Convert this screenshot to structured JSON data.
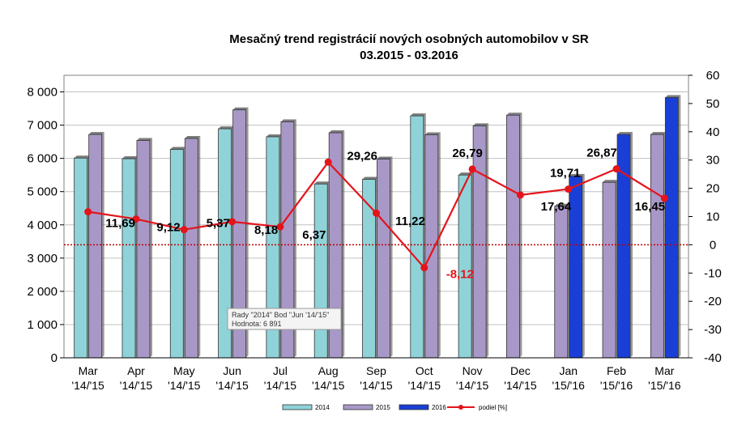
{
  "chart_data": {
    "type": "bar",
    "title": "Mesačný trend registrácií nových osobných automobilov v SR",
    "subtitle": "03.2015 - 03.2016",
    "xlabel": "",
    "ylabel": "",
    "categories": [
      "Mar\n'14/'15",
      "Apr\n'14/'15",
      "May\n'14/'15",
      "Jun\n'14/'15",
      "Jul\n'14/'15",
      "Aug\n'14/'15",
      "Sep\n'14/'15",
      "Oct\n'14/'15",
      "Nov\n'14/'15",
      "Dec\n'14/'15",
      "Jan\n'15/'16",
      "Feb\n'15/'16",
      "Mar\n'15/'16"
    ],
    "ylim": [
      0,
      8500
    ],
    "y2lim": [
      -40,
      60
    ],
    "yticks": [
      "0",
      "1 000",
      "2 000",
      "3 000",
      "4 000",
      "5 000",
      "6 000",
      "7 000",
      "8 000"
    ],
    "y2ticks": [
      "-40",
      "-30",
      "-20",
      "-10",
      "0",
      "10",
      "20",
      "30",
      "40",
      "50",
      "60"
    ],
    "grid": true,
    "legend_position": "bottom",
    "series": [
      {
        "name": "2014",
        "color": "#8fd3d9",
        "values": [
          6010,
          5990,
          6270,
          6891,
          6650,
          5230,
          5370,
          7280,
          5500,
          null,
          null,
          null,
          null
        ]
      },
      {
        "name": "2015",
        "color": "#a898c8",
        "values": [
          6720,
          6540,
          6600,
          7460,
          7100,
          6770,
          5980,
          6710,
          6980,
          7300,
          4560,
          5280,
          6720
        ]
      },
      {
        "name": "2016",
        "color": "#1a3fd6",
        "values": [
          null,
          null,
          null,
          null,
          null,
          null,
          null,
          null,
          null,
          null,
          5460,
          6720,
          7830
        ]
      }
    ],
    "line_series": {
      "name": "podiel [%]",
      "color": "#e4141b",
      "axis": "secondary",
      "values": [
        11.69,
        9.12,
        5.37,
        8.18,
        6.37,
        29.26,
        11.22,
        -8.12,
        26.79,
        17.64,
        19.71,
        26.87,
        16.45
      ],
      "labels": [
        "11,69",
        "9,12",
        "5,37",
        "8,18",
        "6,37",
        "29,26",
        "11,22",
        "-8,12",
        "26,79",
        "17,64",
        "19,71",
        "26,87",
        "16,45"
      ]
    },
    "annotations": {
      "tooltip_line1": "Rady \"2014\" Bod \"Jun '14/'15\"",
      "tooltip_line2": "Hodnota: 6 891"
    }
  },
  "colors": {
    "bar2014": "#8fd3d9",
    "bar2015": "#a898c8",
    "bar2016": "#1a3fd6",
    "line": "#e4141b",
    "plot_bg": "#ffffff",
    "grid": "#c0c0c0",
    "zero_line": "#c00000"
  }
}
